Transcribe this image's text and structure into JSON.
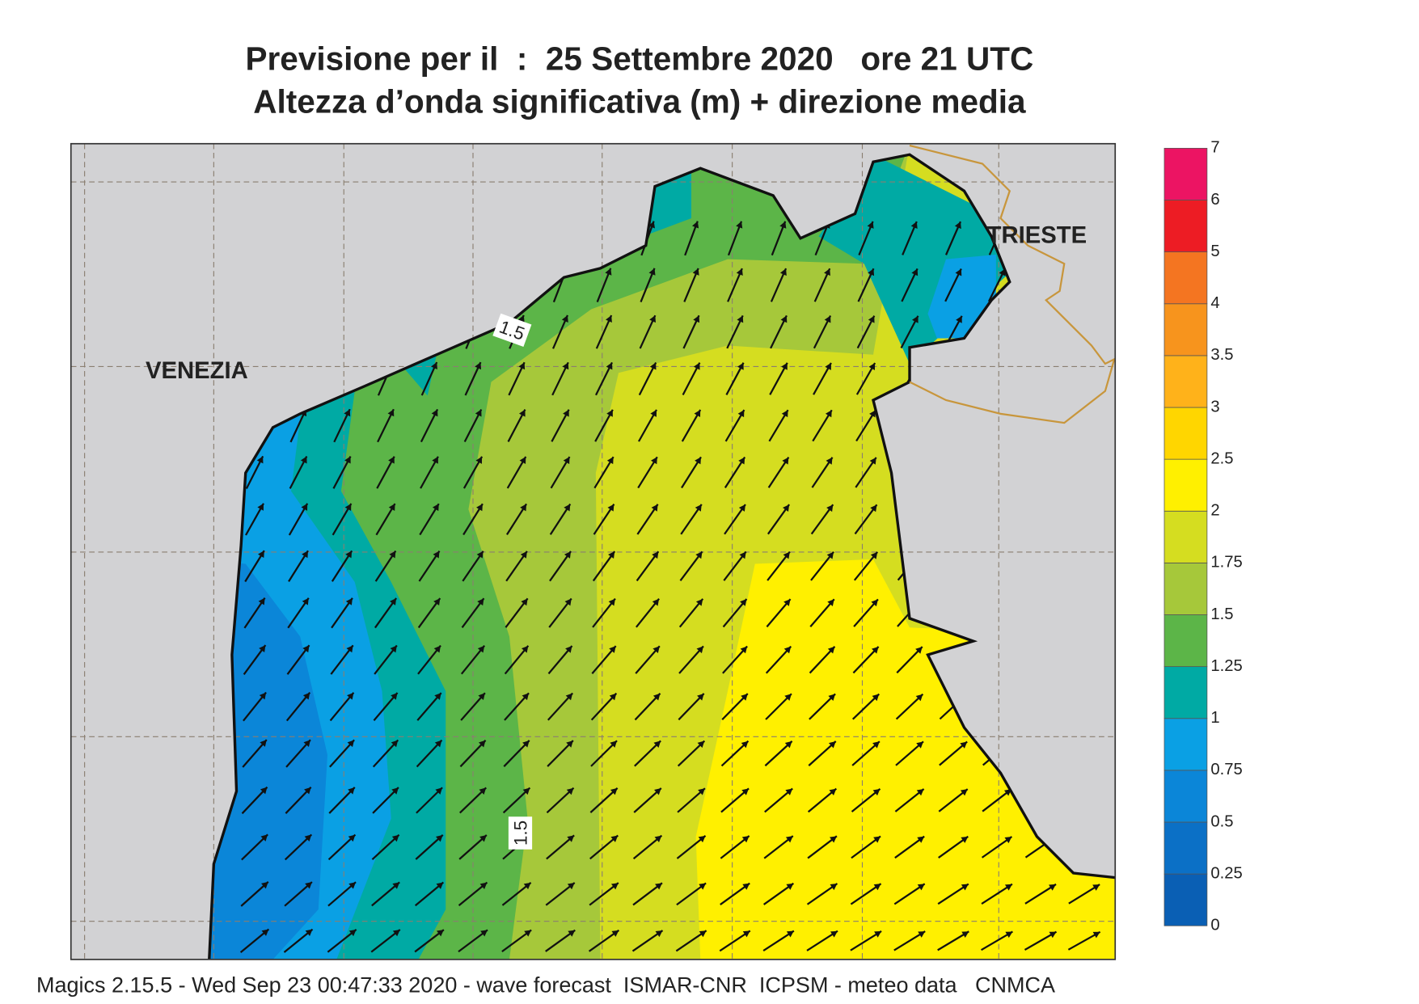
{
  "title": {
    "line1": "Previsione per il  :  25 Settembre 2020   ore 21 UTC",
    "line2": "Altezza d’onda significativa (m) + direzione media"
  },
  "places": [
    "VENEZIA",
    "TRIESTE"
  ],
  "contour_labels": [
    "1.5",
    "1.5"
  ],
  "colorbar": {
    "levels": [
      0,
      0.25,
      0.5,
      0.75,
      1,
      1.25,
      1.5,
      1.75,
      2,
      2.5,
      3,
      3.5,
      4,
      5,
      6,
      7
    ],
    "colors": [
      "#0a5fb4",
      "#0b70c6",
      "#0b86d8",
      "#0aa0e4",
      "#00aaa4",
      "#5cb548",
      "#a6c83a",
      "#d5dd20",
      "#fff000",
      "#ffd600",
      "#ffb21a",
      "#f7941d",
      "#f47521",
      "#ed1c24",
      "#ec1463"
    ]
  },
  "footer": "Magics 2.15.5 - Wed Sep 23 00:47:33 2020 - wave forecast  ISMAR-CNR  ICPSM - meteo data   CNMCA"
}
